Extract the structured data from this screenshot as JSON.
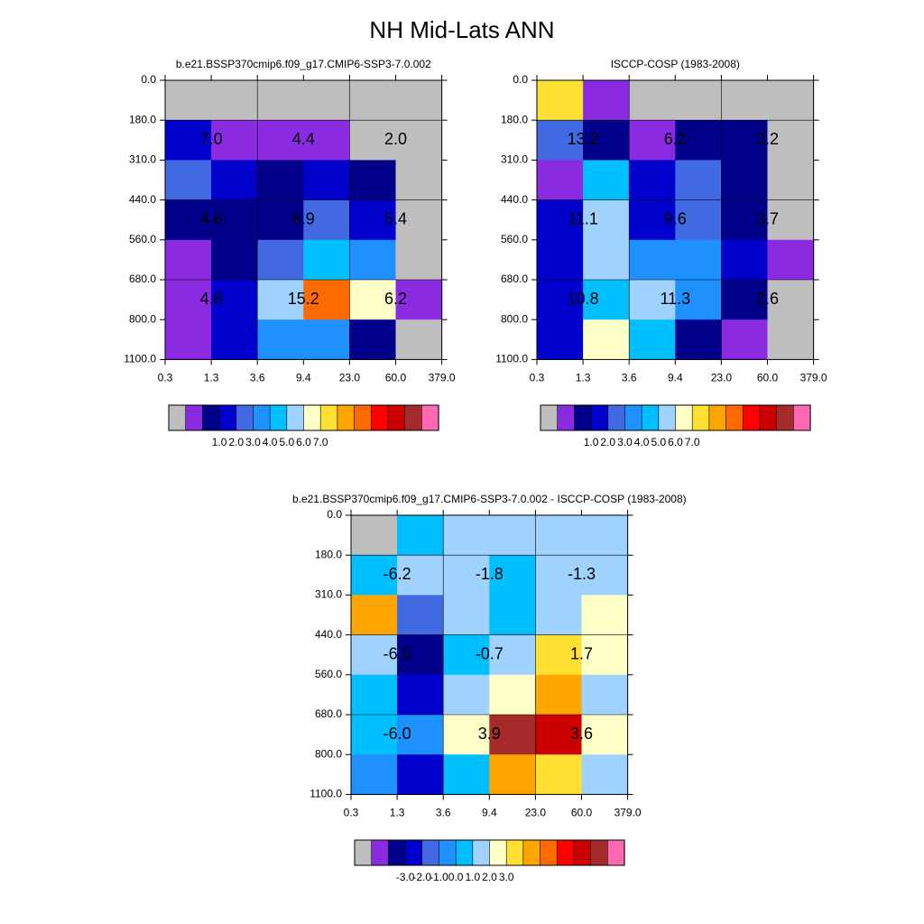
{
  "figure": {
    "title": "NH Mid-Lats ANN"
  },
  "colors": {
    "missing": "#bebebe",
    "grid_line": "#000000",
    "seq_palette": [
      "#bebebe",
      "#8a2be2",
      "#00008b",
      "#0000cd",
      "#4169e1",
      "#1e90ff",
      "#00bfff",
      "#a0d2ff",
      "#ffffc8",
      "#ffe033",
      "#ffa500",
      "#ff6a00",
      "#ff0000",
      "#cd0000",
      "#a52a2a",
      "#ff69b4"
    ],
    "diff_palette": [
      "#bebebe",
      "#8a2be2",
      "#00008b",
      "#0000cd",
      "#4169e1",
      "#1e90ff",
      "#00bfff",
      "#a0d2ff",
      "#ffffc8",
      "#ffe033",
      "#ffa500",
      "#ff6a00",
      "#ff0000",
      "#cd0000",
      "#a52a2a",
      "#ff69b4"
    ]
  },
  "chart_data": [
    {
      "type": "heatmap",
      "id": "model",
      "title": "b.e21.BSSP370cmip6.f09_g17.CMIP6-SSP3-7.0.002",
      "x_tick_labels": [
        "0.3",
        "1.3",
        "3.6",
        "9.4",
        "23.0",
        "60.0",
        "379.0"
      ],
      "y_tick_labels": [
        "0.0",
        "180.0",
        "310.0",
        "440.0",
        "560.0",
        "680.0",
        "800.0",
        "1100.0"
      ],
      "cells_note": "rows top(0.0-180.0) to bottom(800.0-1100.0), columns 0.3 to 379.0; values are colorbar class indices",
      "cells": [
        [
          0,
          0,
          0,
          0,
          0,
          0
        ],
        [
          3,
          1,
          1,
          1,
          0,
          0
        ],
        [
          4,
          3,
          2,
          3,
          2,
          0
        ],
        [
          2,
          2,
          2,
          4,
          3,
          0
        ],
        [
          1,
          2,
          4,
          6,
          5,
          0
        ],
        [
          1,
          3,
          7,
          11,
          8,
          1
        ],
        [
          1,
          3,
          5,
          5,
          2,
          0
        ]
      ],
      "annotations": [
        {
          "row": 1,
          "col": 0,
          "text": "7.0"
        },
        {
          "row": 1,
          "col": 2,
          "text": "4.4"
        },
        {
          "row": 1,
          "col": 4,
          "text": "2.0"
        },
        {
          "row": 3,
          "col": 0,
          "text": "4.6"
        },
        {
          "row": 3,
          "col": 2,
          "text": "8.9"
        },
        {
          "row": 3,
          "col": 4,
          "text": "5.4"
        },
        {
          "row": 5,
          "col": 0,
          "text": "4.8"
        },
        {
          "row": 5,
          "col": 2,
          "text": "15.2"
        },
        {
          "row": 5,
          "col": 4,
          "text": "6.2"
        }
      ],
      "colorbar": {
        "labels": [
          "1.0",
          "2.0",
          "3.0",
          "4.0",
          "5.0",
          "6.0",
          "7.0"
        ],
        "first_label_boundary": 3
      }
    },
    {
      "type": "heatmap",
      "id": "obs",
      "title": "ISCCP-COSP (1983-2008)",
      "x_tick_labels": [
        "0.3",
        "1.3",
        "3.6",
        "9.4",
        "23.0",
        "60.0",
        "379.0"
      ],
      "y_tick_labels": [
        "0.0",
        "180.0",
        "310.0",
        "440.0",
        "560.0",
        "680.0",
        "800.0",
        "1100.0"
      ],
      "cells": [
        [
          9,
          1,
          0,
          0,
          0,
          0
        ],
        [
          4,
          2,
          1,
          2,
          2,
          0
        ],
        [
          1,
          6,
          3,
          4,
          2,
          0
        ],
        [
          3,
          7,
          3,
          4,
          2,
          0
        ],
        [
          3,
          7,
          5,
          5,
          3,
          1
        ],
        [
          3,
          6,
          7,
          5,
          2,
          0
        ],
        [
          3,
          8,
          6,
          2,
          1,
          0
        ]
      ],
      "annotations": [
        {
          "row": 1,
          "col": 0,
          "text": "13.2"
        },
        {
          "row": 1,
          "col": 2,
          "text": "6.2"
        },
        {
          "row": 1,
          "col": 4,
          "text": "3.2"
        },
        {
          "row": 3,
          "col": 0,
          "text": "11.1"
        },
        {
          "row": 3,
          "col": 2,
          "text": "9.6"
        },
        {
          "row": 3,
          "col": 4,
          "text": "3.7"
        },
        {
          "row": 5,
          "col": 0,
          "text": "10.8"
        },
        {
          "row": 5,
          "col": 2,
          "text": "11.3"
        },
        {
          "row": 5,
          "col": 4,
          "text": "2.6"
        }
      ],
      "colorbar": {
        "labels": [
          "1.0",
          "2.0",
          "3.0",
          "4.0",
          "5.0",
          "6.0",
          "7.0"
        ],
        "first_label_boundary": 3
      }
    },
    {
      "type": "heatmap",
      "id": "diff",
      "title": "b.e21.BSSP370cmip6.f09_g17.CMIP6-SSP3-7.0.002 - ISCCP-COSP (1983-2008)",
      "x_tick_labels": [
        "0.3",
        "1.3",
        "3.6",
        "9.4",
        "23.0",
        "60.0",
        "379.0"
      ],
      "y_tick_labels": [
        "0.0",
        "180.0",
        "310.0",
        "440.0",
        "560.0",
        "680.0",
        "800.0",
        "1100.0"
      ],
      "cells": [
        [
          0,
          6,
          7,
          7,
          7,
          7
        ],
        [
          6,
          7,
          7,
          6,
          7,
          7
        ],
        [
          10,
          4,
          7,
          6,
          7,
          8
        ],
        [
          7,
          2,
          6,
          7,
          9,
          8
        ],
        [
          6,
          3,
          7,
          8,
          10,
          7
        ],
        [
          6,
          5,
          8,
          14,
          13,
          8
        ],
        [
          5,
          3,
          6,
          10,
          9,
          7
        ]
      ],
      "annotations": [
        {
          "row": 1,
          "col": 0,
          "text": "-6.2"
        },
        {
          "row": 1,
          "col": 2,
          "text": "-1.8"
        },
        {
          "row": 1,
          "col": 4,
          "text": "-1.3"
        },
        {
          "row": 3,
          "col": 0,
          "text": "-6.5"
        },
        {
          "row": 3,
          "col": 2,
          "text": "-0.7"
        },
        {
          "row": 3,
          "col": 4,
          "text": "1.7"
        },
        {
          "row": 5,
          "col": 0,
          "text": "-6.0"
        },
        {
          "row": 5,
          "col": 2,
          "text": "3.9"
        },
        {
          "row": 5,
          "col": 4,
          "text": "3.6"
        }
      ],
      "colorbar": {
        "labels": [
          "-3.0",
          "-2.0",
          "-1.0",
          "0.0",
          "1.0",
          "2.0",
          "3.0"
        ],
        "first_label_boundary": 3
      }
    }
  ]
}
